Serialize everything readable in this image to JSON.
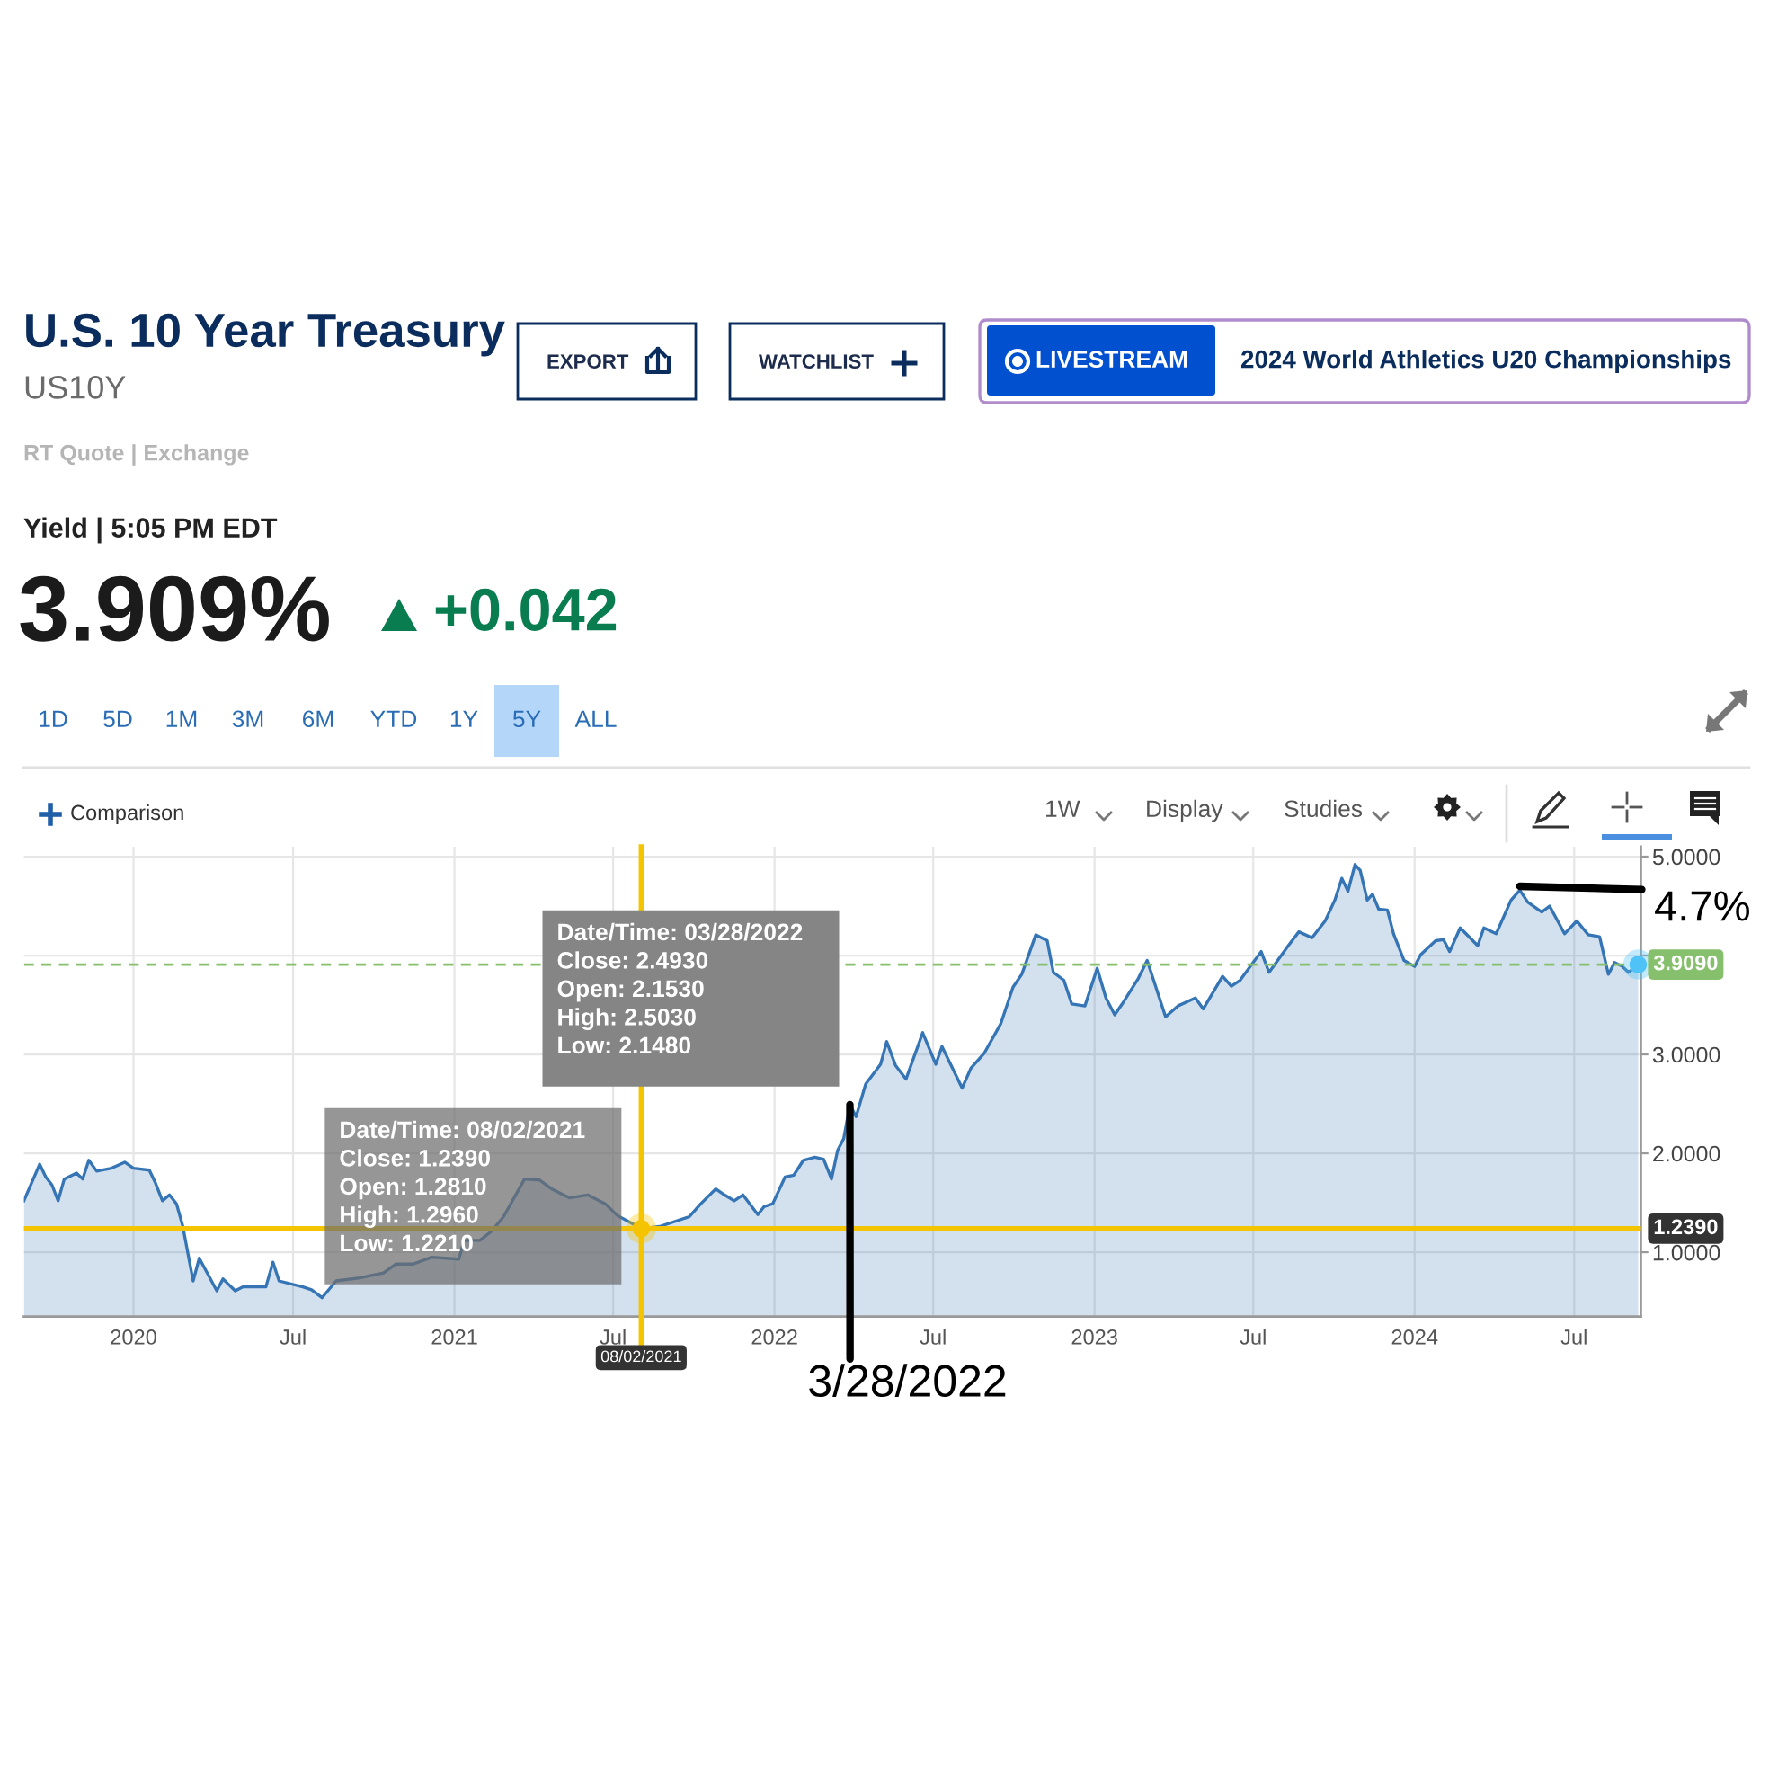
{
  "chart_data": {
    "type": "area",
    "title": "U.S. 10 Year Treasury",
    "subtitle": "US10Y",
    "x": [
      "2019-08-29",
      "2019-09-16",
      "2019-09-23",
      "2019-09-30",
      "2019-10-07",
      "2019-10-14",
      "2019-10-28",
      "2019-11-04",
      "2019-11-11",
      "2019-11-20",
      "2019-12-07",
      "2019-12-22",
      "2020-01-01",
      "2020-01-19",
      "2020-01-26",
      "2020-02-03",
      "2020-02-11",
      "2020-02-19",
      "2020-02-26",
      "2020-03-09",
      "2020-03-16",
      "2020-04-05",
      "2020-04-12",
      "2020-04-26",
      "2020-05-05",
      "2020-05-31",
      "2020-06-08",
      "2020-06-15",
      "2020-07-12",
      "2020-07-22",
      "2020-08-03",
      "2020-08-19",
      "2020-09-15",
      "2020-10-12",
      "2020-10-26",
      "2020-11-15",
      "2020-12-06",
      "2021-01-06",
      "2021-01-12",
      "2021-01-30",
      "2021-02-12",
      "2021-02-26",
      "2021-03-22",
      "2021-04-08",
      "2021-04-22",
      "2021-05-12",
      "2021-06-02",
      "2021-06-22",
      "2021-07-06",
      "2021-07-23",
      "2021-08-02",
      "2021-08-23",
      "2021-09-26",
      "2021-10-09",
      "2021-10-26",
      "2021-11-05",
      "2021-11-16",
      "2021-11-26",
      "2021-12-13",
      "2021-12-20",
      "2021-12-30",
      "2022-01-13",
      "2022-01-23",
      "2022-02-03",
      "2022-02-16",
      "2022-02-26",
      "2022-03-07",
      "2022-03-14",
      "2022-03-21",
      "2022-03-28",
      "2022-04-04",
      "2022-04-15",
      "2022-05-02",
      "2022-05-09",
      "2022-05-19",
      "2022-05-31",
      "2022-06-19",
      "2022-07-04",
      "2022-07-11",
      "2022-08-03",
      "2022-08-13",
      "2022-08-28",
      "2022-09-16",
      "2022-09-30",
      "2022-10-10",
      "2022-10-26",
      "2022-11-08",
      "2022-11-15",
      "2022-11-27",
      "2022-12-06",
      "2022-12-21",
      "2023-01-04",
      "2023-01-14",
      "2023-01-24",
      "2023-02-03",
      "2023-02-20",
      "2023-03-02",
      "2023-03-23",
      "2023-04-06",
      "2023-04-26",
      "2023-05-05",
      "2023-05-27",
      "2023-06-06",
      "2023-06-16",
      "2023-07-10",
      "2023-07-19",
      "2023-08-10",
      "2023-08-22",
      "2023-09-06",
      "2023-09-21",
      "2023-10-02",
      "2023-10-10",
      "2023-10-17",
      "2023-10-25",
      "2023-10-31",
      "2023-11-08",
      "2023-11-14",
      "2023-11-21",
      "2023-12-01",
      "2023-12-08",
      "2023-12-20",
      "2024-01-01",
      "2024-01-08",
      "2024-01-25",
      "2024-02-03",
      "2024-02-10",
      "2024-02-22",
      "2024-03-13",
      "2024-03-20",
      "2024-04-03",
      "2024-04-20",
      "2024-04-30",
      "2024-05-09",
      "2024-05-25",
      "2024-06-03",
      "2024-06-20",
      "2024-07-04",
      "2024-07-17",
      "2024-07-30",
      "2024-08-09",
      "2024-08-16",
      "2024-08-25",
      "2024-09-01",
      "2024-09-12"
    ],
    "series": [
      {
        "color": "#3575b5",
        "values": [
          1.52,
          1.89,
          1.76,
          1.68,
          1.52,
          1.74,
          1.8,
          1.74,
          1.93,
          1.82,
          1.85,
          1.91,
          1.85,
          1.83,
          1.7,
          1.52,
          1.58,
          1.49,
          1.27,
          0.71,
          0.94,
          0.61,
          0.73,
          0.61,
          0.65,
          0.65,
          0.9,
          0.71,
          0.65,
          0.62,
          0.54,
          0.71,
          0.74,
          0.79,
          0.88,
          0.88,
          0.95,
          0.93,
          1.12,
          1.12,
          1.21,
          1.36,
          1.74,
          1.73,
          1.64,
          1.55,
          1.58,
          1.49,
          1.37,
          1.29,
          1.239,
          1.26,
          1.36,
          1.49,
          1.64,
          1.58,
          1.52,
          1.58,
          1.38,
          1.46,
          1.49,
          1.76,
          1.78,
          1.93,
          1.96,
          1.94,
          1.74,
          2.03,
          2.15,
          2.493,
          2.37,
          2.7,
          2.9,
          3.13,
          2.89,
          2.75,
          3.22,
          2.9,
          3.08,
          2.66,
          2.86,
          3.01,
          3.31,
          3.68,
          3.81,
          4.21,
          4.15,
          3.83,
          3.75,
          3.51,
          3.49,
          3.87,
          3.57,
          3.4,
          3.53,
          3.77,
          3.95,
          3.38,
          3.49,
          3.57,
          3.46,
          3.79,
          3.69,
          3.75,
          4.04,
          3.83,
          4.1,
          4.24,
          4.18,
          4.35,
          4.56,
          4.78,
          4.65,
          4.92,
          4.86,
          4.56,
          4.62,
          4.47,
          4.46,
          4.22,
          3.95,
          3.89,
          4.01,
          4.15,
          4.16,
          4.04,
          4.28,
          4.1,
          4.28,
          4.22,
          4.56,
          4.66,
          4.54,
          4.44,
          4.5,
          4.22,
          4.35,
          4.21,
          4.19,
          3.81,
          3.93,
          3.89,
          3.83,
          3.909
        ]
      },
      {
        "type": "scatter",
        "color": "#f5c400",
        "x": [
          "2021-08-02"
        ],
        "values": [
          1.239
        ]
      },
      {
        "type": "scatter",
        "color": "#4fc3f7",
        "x": [
          "2024-09-12"
        ],
        "values": [
          3.909
        ]
      }
    ],
    "xlim": [
      "2019-08-29",
      "2024-09-15"
    ],
    "xticks": [
      {
        "value": "2020-01-01",
        "label": "2020"
      },
      {
        "value": "2020-07-01",
        "label": "Jul"
      },
      {
        "value": "2021-01-01",
        "label": "2021"
      },
      {
        "value": "2021-07-01",
        "label": "Jul"
      },
      {
        "value": "2022-01-01",
        "label": "2022"
      },
      {
        "value": "2022-07-01",
        "label": "Jul"
      },
      {
        "value": "2023-01-01",
        "label": "2023"
      },
      {
        "value": "2023-07-01",
        "label": "Jul"
      },
      {
        "value": "2024-01-01",
        "label": "2024"
      },
      {
        "value": "2024-07-01",
        "label": "Jul"
      }
    ],
    "ylim": [
      0.35,
      5.1
    ],
    "yticks": [
      {
        "value": 1,
        "label": "1.0000"
      },
      {
        "value": 2,
        "label": "2.0000"
      },
      {
        "value": 3,
        "label": "3.0000"
      },
      {
        "value": 4,
        "label": null
      },
      {
        "value": 5,
        "label": "5.0000"
      }
    ],
    "grid": true,
    "ref_lines": [
      {
        "axis": "y",
        "value": 3.909,
        "label": "3.9090",
        "color": "#86c06c",
        "line_style": "dashed"
      },
      {
        "axis": "y",
        "value": 1.239,
        "label": "1.2390",
        "color": "#f5c400"
      },
      {
        "axis": "x",
        "value": "2021-08-02",
        "label": "08/02/2021",
        "color": "#f5c400"
      }
    ],
    "annotations": [
      "RT Quote | Exchange",
      "Yield | 5:05 PM EDT",
      "3.909%",
      "+0.042",
      "EXPORT",
      "WATCHLIST",
      "LIVESTREAM",
      "2024 World Athletics U20 Championships",
      "1D",
      "5D",
      "1M",
      "3M",
      "6M",
      "YTD",
      "1Y",
      "5Y",
      "ALL",
      "Comparison",
      "1W",
      "Display",
      "Studies",
      {
        "text": "Date/Time: 03/28/2022\nClose: 2.4930\nOpen: 2.1530\nHigh: 2.5030\nLow: 2.1480",
        "x": "2022-03-28",
        "y": 2.493
      },
      {
        "text": "Date/Time: 08/02/2021\nClose: 1.2390\nOpen: 1.2810\nHigh: 1.2960\nLow: 1.2210",
        "x": "2021-08-02",
        "y": 1.239
      },
      {
        "text": "4.7%",
        "x": "2024-04-30",
        "y": 4.7
      },
      {
        "text": "3/28/2022",
        "x": "2022-03-28",
        "y": 2.493
      }
    ]
  }
}
